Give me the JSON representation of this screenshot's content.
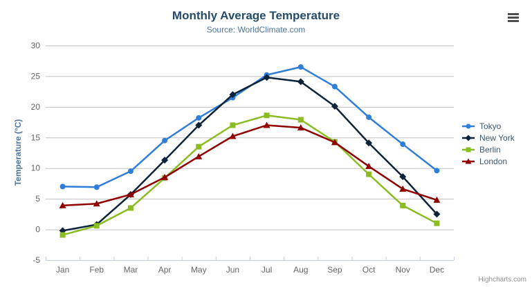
{
  "header": {
    "title": "Monthly Average Temperature",
    "subtitle": "Source: WorldClimate.com"
  },
  "toolbar": {
    "context_menu_icon": "hamburger-menu-icon"
  },
  "credits": {
    "label": "Highcharts.com"
  },
  "chart_data": {
    "type": "line",
    "title": "Monthly Average Temperature",
    "subtitle": "Source: WorldClimate.com",
    "xlabel": "",
    "ylabel": "Temperature (°C)",
    "ylim": [
      -5,
      30
    ],
    "yticks": [
      -5,
      0,
      5,
      10,
      15,
      20,
      25,
      30
    ],
    "grid": true,
    "legend_position": "right-middle",
    "categories": [
      "Jan",
      "Feb",
      "Mar",
      "Apr",
      "May",
      "Jun",
      "Jul",
      "Aug",
      "Sep",
      "Oct",
      "Nov",
      "Dec"
    ],
    "series": [
      {
        "name": "Tokyo",
        "color": "#2f7ed8",
        "marker": "circle",
        "values": [
          7.0,
          6.9,
          9.5,
          14.5,
          18.2,
          21.5,
          25.2,
          26.5,
          23.3,
          18.3,
          13.9,
          9.6
        ]
      },
      {
        "name": "New York",
        "color": "#0d233a",
        "marker": "diamond",
        "values": [
          -0.2,
          0.8,
          5.7,
          11.3,
          17.0,
          22.0,
          24.8,
          24.1,
          20.1,
          14.1,
          8.6,
          2.5
        ]
      },
      {
        "name": "Berlin",
        "color": "#8bbc21",
        "marker": "square",
        "values": [
          -0.9,
          0.6,
          3.5,
          8.4,
          13.5,
          17.0,
          18.6,
          17.9,
          14.3,
          9.0,
          3.9,
          1.0
        ]
      },
      {
        "name": "London",
        "color": "#910000",
        "marker": "triangle",
        "values": [
          3.9,
          4.2,
          5.7,
          8.5,
          11.9,
          15.2,
          17.0,
          16.6,
          14.2,
          10.3,
          6.6,
          4.8
        ]
      }
    ],
    "palette": {
      "grid_line": "#C0C0C0",
      "axis_line": "#C0D0E0",
      "tick_label": "#666666",
      "title": "#274b6d",
      "subtitle": "#4d759e",
      "axis_title": "#4d759e",
      "legend_text": "#3E576F"
    }
  }
}
